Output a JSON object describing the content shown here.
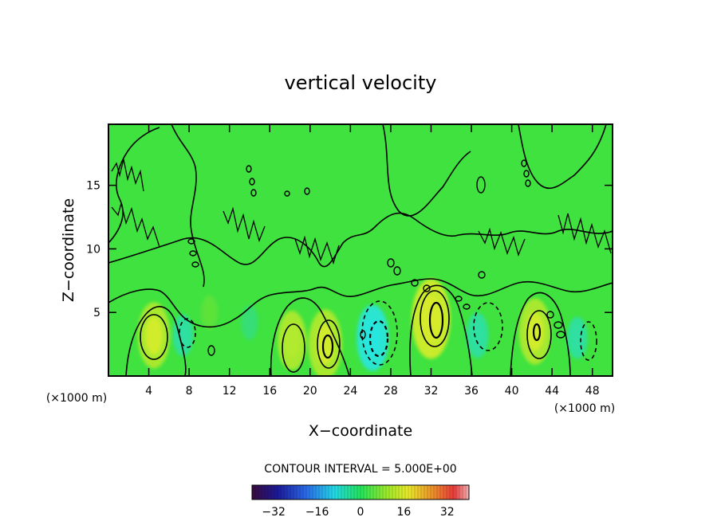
{
  "chart_data": {
    "type": "heatmap",
    "title": "vertical velocity",
    "xlabel": "X−coordinate",
    "ylabel": "Z−coordinate",
    "x_unit": "(×1000 m)",
    "y_unit": "(×1000 m)",
    "xlim": [
      0,
      50
    ],
    "ylim": [
      0,
      19.8
    ],
    "x_ticks": [
      4,
      8,
      12,
      16,
      20,
      24,
      28,
      32,
      36,
      40,
      44,
      48
    ],
    "y_ticks": [
      5,
      10,
      15
    ],
    "contour_interval_label": "CONTOUR INTERVAL = 5.000E+00",
    "colorbar": {
      "range": [
        -40,
        40
      ],
      "ticks": [
        -32,
        -16,
        0,
        16,
        32
      ],
      "tick_labels": [
        "−32",
        "−16",
        "0",
        "16",
        "32"
      ]
    },
    "features": [
      {
        "x": 4.5,
        "z": 3.2,
        "w": 12,
        "kind": "updraft"
      },
      {
        "x": 7.4,
        "z": 3.2,
        "w": -5,
        "kind": "downdraft"
      },
      {
        "x": 10.0,
        "z": 5.0,
        "w": 3,
        "kind": "updraft"
      },
      {
        "x": 14.0,
        "z": 4.2,
        "w": -3,
        "kind": "downdraft"
      },
      {
        "x": 18.2,
        "z": 2.8,
        "w": 10,
        "kind": "updraft"
      },
      {
        "x": 21.5,
        "z": 2.5,
        "w": 13,
        "kind": "updraft"
      },
      {
        "x": 26.2,
        "z": 3.0,
        "w": -12,
        "kind": "downdraft"
      },
      {
        "x": 32.0,
        "z": 4.5,
        "w": 16,
        "kind": "updraft"
      },
      {
        "x": 36.6,
        "z": 3.2,
        "w": -6,
        "kind": "downdraft"
      },
      {
        "x": 42.3,
        "z": 3.5,
        "w": 12,
        "kind": "updraft"
      },
      {
        "x": 46.5,
        "z": 3.0,
        "w": -5,
        "kind": "downdraft"
      }
    ]
  }
}
